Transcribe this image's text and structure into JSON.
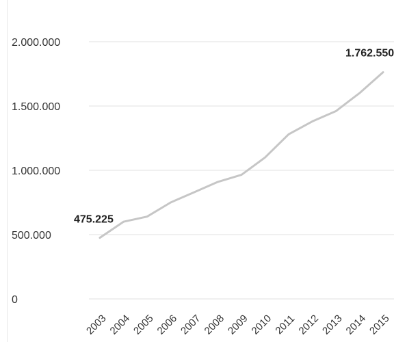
{
  "chart_data": {
    "type": "line",
    "title": "",
    "xlabel": "",
    "ylabel": "",
    "x": [
      "2003",
      "2004",
      "2005",
      "2006",
      "2007",
      "2008",
      "2009",
      "2010",
      "2011",
      "2012",
      "2013",
      "2014",
      "2015"
    ],
    "series": [
      {
        "values": [
          475225,
          600000,
          640000,
          750000,
          830000,
          910000,
          965000,
          1100000,
          1280000,
          1380000,
          1460000,
          1600000,
          1762550
        ]
      }
    ],
    "ylim": [
      0,
      2000000
    ],
    "yticks": [
      0,
      500000,
      1000000,
      1500000,
      2000000
    ],
    "ytick_labels": [
      "0",
      "500.000",
      "1.000.000",
      "1.500.000",
      "2.000.000"
    ],
    "data_labels": [
      {
        "index": 0,
        "text": "475.225"
      },
      {
        "index": 12,
        "text": "1.762.550"
      }
    ],
    "grid": true,
    "legend": "none",
    "colors": {
      "line": "#c6c6c6",
      "grid": "#e8e8e8",
      "text": "#333333"
    }
  }
}
